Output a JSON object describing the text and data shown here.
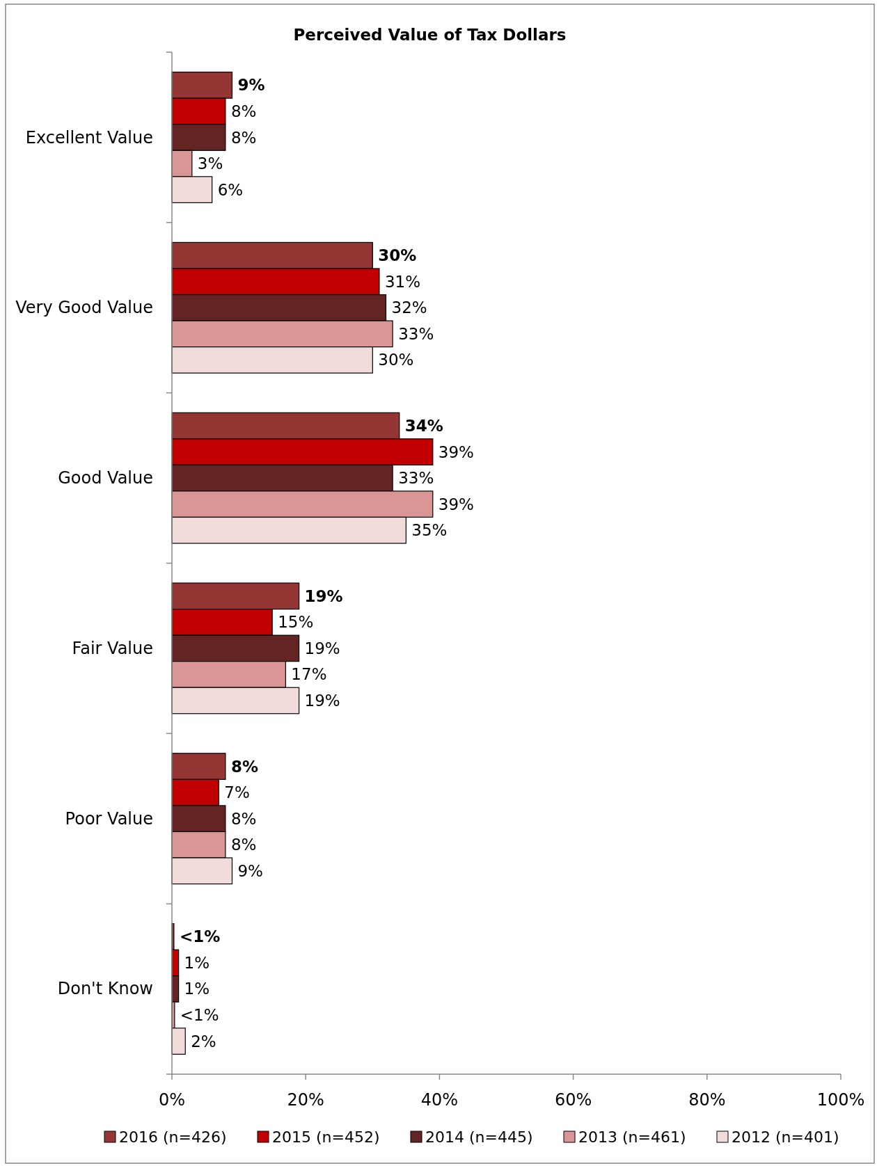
{
  "chart_data": {
    "type": "bar",
    "orientation": "horizontal",
    "title": "Perceived Value of Tax Dollars",
    "categories": [
      "Excellent Value",
      "Very Good Value",
      "Good Value",
      "Fair Value",
      "Poor Value",
      "Don't Know"
    ],
    "series": [
      {
        "name": "2016 (n=426)",
        "color": "#943634",
        "values": [
          9,
          30,
          34,
          19,
          8,
          0.3
        ],
        "value_labels": [
          "9%",
          "30%",
          "34%",
          "19%",
          "8%",
          "<1%"
        ]
      },
      {
        "name": "2015 (n=452)",
        "color": "#c00000",
        "values": [
          8,
          31,
          39,
          15,
          7,
          1
        ],
        "value_labels": [
          "8%",
          "31%",
          "39%",
          "15%",
          "7%",
          "1%"
        ]
      },
      {
        "name": "2014 (n=445)",
        "color": "#632423",
        "values": [
          8,
          32,
          33,
          19,
          8,
          1
        ],
        "value_labels": [
          "8%",
          "32%",
          "33%",
          "19%",
          "8%",
          "1%"
        ]
      },
      {
        "name": "2013 (n=461)",
        "color": "#d99694",
        "values": [
          3,
          33,
          39,
          17,
          8,
          0.4
        ],
        "value_labels": [
          "3%",
          "33%",
          "39%",
          "17%",
          "8%",
          "<1%"
        ]
      },
      {
        "name": "2012 (n=401)",
        "color": "#f2dcdb",
        "values": [
          6,
          30,
          35,
          19,
          9,
          2
        ],
        "value_labels": [
          "6%",
          "30%",
          "35%",
          "19%",
          "9%",
          "2%"
        ]
      }
    ],
    "xlim": [
      0,
      100
    ],
    "xticks": [
      {
        "value": 0,
        "label": "0%"
      },
      {
        "value": 20,
        "label": "20%"
      },
      {
        "value": 40,
        "label": "40%"
      },
      {
        "value": 60,
        "label": "60%"
      },
      {
        "value": 80,
        "label": "80%"
      },
      {
        "value": 100,
        "label": "100%"
      }
    ],
    "grid": false,
    "legend": "bottom"
  }
}
